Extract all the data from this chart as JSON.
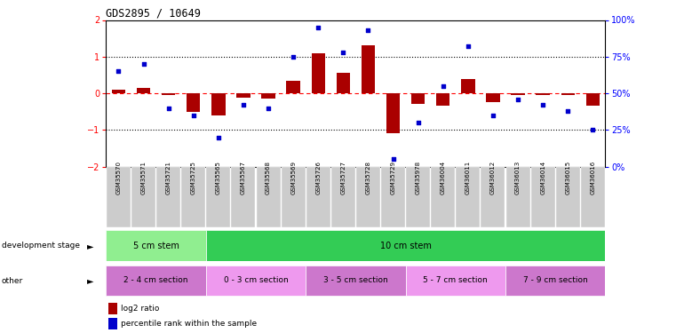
{
  "title": "GDS2895 / 10649",
  "samples": [
    "GSM35570",
    "GSM35571",
    "GSM35721",
    "GSM35725",
    "GSM35565",
    "GSM35567",
    "GSM35568",
    "GSM35569",
    "GSM35726",
    "GSM35727",
    "GSM35728",
    "GSM35729",
    "GSM35978",
    "GSM36004",
    "GSM36011",
    "GSM36012",
    "GSM36013",
    "GSM36014",
    "GSM36015",
    "GSM36016"
  ],
  "log2_ratio": [
    0.1,
    0.15,
    -0.05,
    -0.5,
    -0.6,
    -0.12,
    -0.15,
    0.35,
    1.1,
    0.55,
    1.3,
    -1.1,
    -0.3,
    -0.35,
    0.4,
    -0.25,
    -0.05,
    -0.05,
    -0.05,
    -0.35
  ],
  "percentile": [
    65,
    70,
    40,
    35,
    20,
    42,
    40,
    75,
    95,
    78,
    93,
    5,
    30,
    55,
    82,
    35,
    46,
    42,
    38,
    25
  ],
  "ylim_left": [
    -2,
    2
  ],
  "ylim_right": [
    0,
    100
  ],
  "yticks_left": [
    -2,
    -1,
    0,
    1,
    2
  ],
  "yticks_right": [
    0,
    25,
    50,
    75,
    100
  ],
  "ytick_labels_right": [
    "0%",
    "25%",
    "50%",
    "75%",
    "100%"
  ],
  "bar_color": "#aa0000",
  "scatter_color": "#0000cc",
  "dev_stage_groups": [
    {
      "label": "5 cm stem",
      "start": 0,
      "end": 3,
      "color": "#90ee90"
    },
    {
      "label": "10 cm stem",
      "start": 4,
      "end": 19,
      "color": "#33cc55"
    }
  ],
  "other_groups": [
    {
      "label": "2 - 4 cm section",
      "start": 0,
      "end": 3,
      "color": "#cc77cc"
    },
    {
      "label": "0 - 3 cm section",
      "start": 4,
      "end": 7,
      "color": "#ee99ee"
    },
    {
      "label": "3 - 5 cm section",
      "start": 8,
      "end": 11,
      "color": "#cc77cc"
    },
    {
      "label": "5 - 7 cm section",
      "start": 12,
      "end": 15,
      "color": "#ee99ee"
    },
    {
      "label": "7 - 9 cm section",
      "start": 16,
      "end": 19,
      "color": "#cc77cc"
    }
  ],
  "legend_bar_color": "#aa0000",
  "legend_scatter_color": "#0000cc",
  "legend_bar_label": "log2 ratio",
  "legend_scatter_label": "percentile rank within the sample",
  "background_color": "#ffffff",
  "tick_label_bg": "#cccccc"
}
